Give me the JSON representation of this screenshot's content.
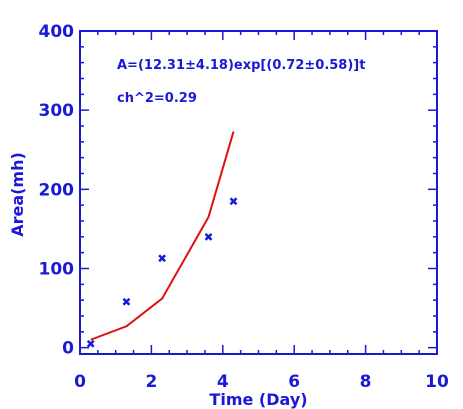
{
  "colors": {
    "axis": "#1a1ad6",
    "fit_line": "#e01010",
    "markers": "#1a1ad6",
    "background": "#ffffff"
  },
  "chart_data": {
    "type": "scatter",
    "title": "",
    "xlabel": "Time (Day)",
    "ylabel": "Area(mh)",
    "xlim": [
      0,
      10
    ],
    "ylim": [
      -8,
      400
    ],
    "x_ticks": [
      0,
      2,
      4,
      6,
      8,
      10
    ],
    "x_tick_labels": [
      "0",
      "2",
      "4",
      "6",
      "8",
      "10"
    ],
    "y_ticks": [
      0,
      100,
      200,
      300,
      400
    ],
    "y_tick_labels": [
      "0",
      "100",
      "200",
      "300",
      "400"
    ],
    "grid": false,
    "annotations": [
      "A=(12.31±4.18)exp[(0.72±0.58)]t",
      "ch^2=0.29"
    ],
    "series": [
      {
        "kind": "points",
        "x": [
          0.3,
          1.3,
          2.3,
          3.6,
          4.3
        ],
        "y": [
          5,
          58,
          113,
          140,
          185
        ]
      },
      {
        "kind": "line",
        "x": [
          0.3,
          1.3,
          2.3,
          3.6,
          4.3
        ],
        "y": [
          10,
          27,
          62,
          165,
          273
        ]
      }
    ]
  }
}
